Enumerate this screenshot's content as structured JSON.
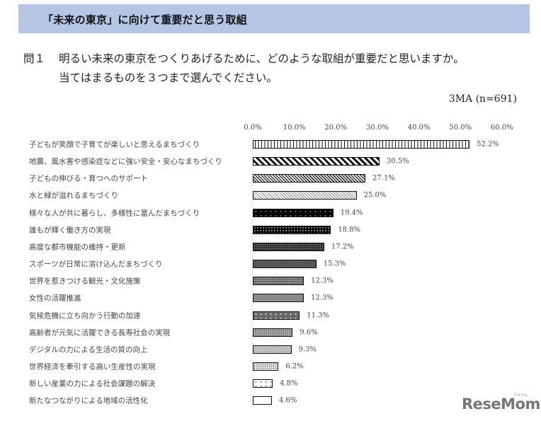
{
  "header": {
    "title": "「未来の東京」に向けて重要だと思う取組"
  },
  "question": {
    "number": "問１",
    "line1": "明るい未来の東京をつくりあげるために、どのような取組が重要だと思いますか。",
    "line2": "当てはまるものを３つまで選んでください。",
    "sample_note": "3MA (n=691)"
  },
  "axis": {
    "ticks": [
      "0.0%",
      "10.0%",
      "20.0%",
      "30.0%",
      "40.0%",
      "50.0%",
      "60.0%"
    ]
  },
  "rows": [
    {
      "label": "子どもが笑顔で子育てが楽しいと思えるまちづくり",
      "value_label": "52.2%"
    },
    {
      "label": "地震、風水害や感染症などに強い安全・安心なまちづくり",
      "value_label": "30.5%"
    },
    {
      "label": "子どもの伸びる・育つへのサポート",
      "value_label": "27.1%"
    },
    {
      "label": "水と緑が溢れるまちづくり",
      "value_label": "25.0%"
    },
    {
      "label": "様々な人が共に暮らし、多様性に富んだまちづくり",
      "value_label": "19.4%"
    },
    {
      "label": "誰もが輝く働き方の実現",
      "value_label": "18.8%"
    },
    {
      "label": "高度な都市機能の維持・更新",
      "value_label": "17.2%"
    },
    {
      "label": "スポーツが日常に溶け込んだまちづくり",
      "value_label": "15.3%"
    },
    {
      "label": "世界を惹きつける観光・文化施策",
      "value_label": "12.3%"
    },
    {
      "label": "女性の活躍推進",
      "value_label": "12.3%"
    },
    {
      "label": "気候危機に立ち向かう行動の加速",
      "value_label": "11.3%"
    },
    {
      "label": "高齢者が元気に活躍できる長寿社会の実現",
      "value_label": "9.6%"
    },
    {
      "label": "デジタルの力による生活の質の向上",
      "value_label": "9.3%"
    },
    {
      "label": "世界経済を牽引する高い生産性の実現",
      "value_label": "6.2%"
    },
    {
      "label": "新しい産業の力による社会課題の解決",
      "value_label": "4.8%"
    },
    {
      "label": "新たなつながりによる地域の活性化",
      "value_label": "4.6%"
    }
  ],
  "logo": {
    "text": "ReseMom",
    "ruby": "リセマム"
  },
  "chart_data": {
    "type": "bar",
    "orientation": "horizontal",
    "title": "「未来の東京」に向けて重要だと思う取組",
    "subtitle": "問１ 明るい未来の東京をつくりあげるために、どのような取組が重要だと思いますか。当てはまるものを３つまで選んでください。 3MA (n=691)",
    "xlabel": "",
    "ylabel": "",
    "xlim": [
      0,
      60
    ],
    "x_ticks": [
      0,
      10,
      20,
      30,
      40,
      50,
      60
    ],
    "x_tick_labels": [
      "0.0%",
      "10.0%",
      "20.0%",
      "30.0%",
      "40.0%",
      "50.0%",
      "60.0%"
    ],
    "grid": false,
    "legend": null,
    "categories": [
      "子どもが笑顔で子育てが楽しいと思えるまちづくり",
      "地震、風水害や感染症などに強い安全・安心なまちづくり",
      "子どもの伸びる・育つへのサポート",
      "水と緑が溢れるまちづくり",
      "様々な人が共に暮らし、多様性に富んだまちづくり",
      "誰もが輝く働き方の実現",
      "高度な都市機能の維持・更新",
      "スポーツが日常に溶け込んだまちづくり",
      "世界を惹きつける観光・文化施策",
      "女性の活躍推進",
      "気候危機に立ち向かう行動の加速",
      "高齢者が元気に活躍できる長寿社会の実現",
      "デジタルの力による生活の質の向上",
      "世界経済を牽引する高い生産性の実現",
      "新しい産業の力による社会課題の解決",
      "新たなつながりによる地域の活性化"
    ],
    "values": [
      52.2,
      30.5,
      27.1,
      25.0,
      19.4,
      18.8,
      17.2,
      15.3,
      12.3,
      12.3,
      11.3,
      9.6,
      9.3,
      6.2,
      4.8,
      4.6
    ],
    "unit": "%",
    "n": 691
  }
}
